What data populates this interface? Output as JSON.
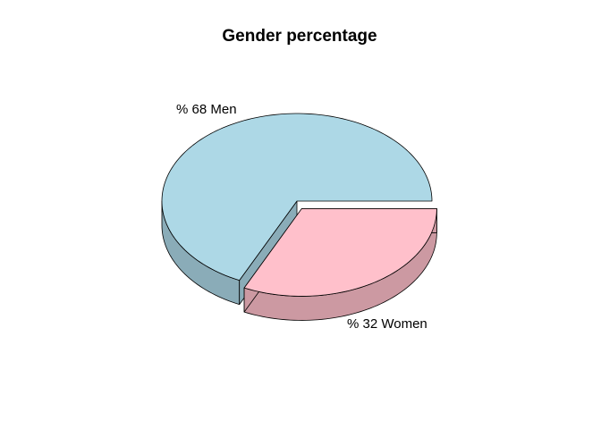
{
  "chart_data": {
    "type": "pie",
    "three_d": true,
    "title": "Gender percentage",
    "slices": [
      {
        "label": "% 68  Men",
        "value": 68,
        "color": "#ADD8E6",
        "side_color": "#8AACB8"
      },
      {
        "label": "% 32  Women",
        "value": 32,
        "color": "#FFC0CB",
        "side_color": "#CC99A2",
        "exploded": true
      }
    ]
  }
}
